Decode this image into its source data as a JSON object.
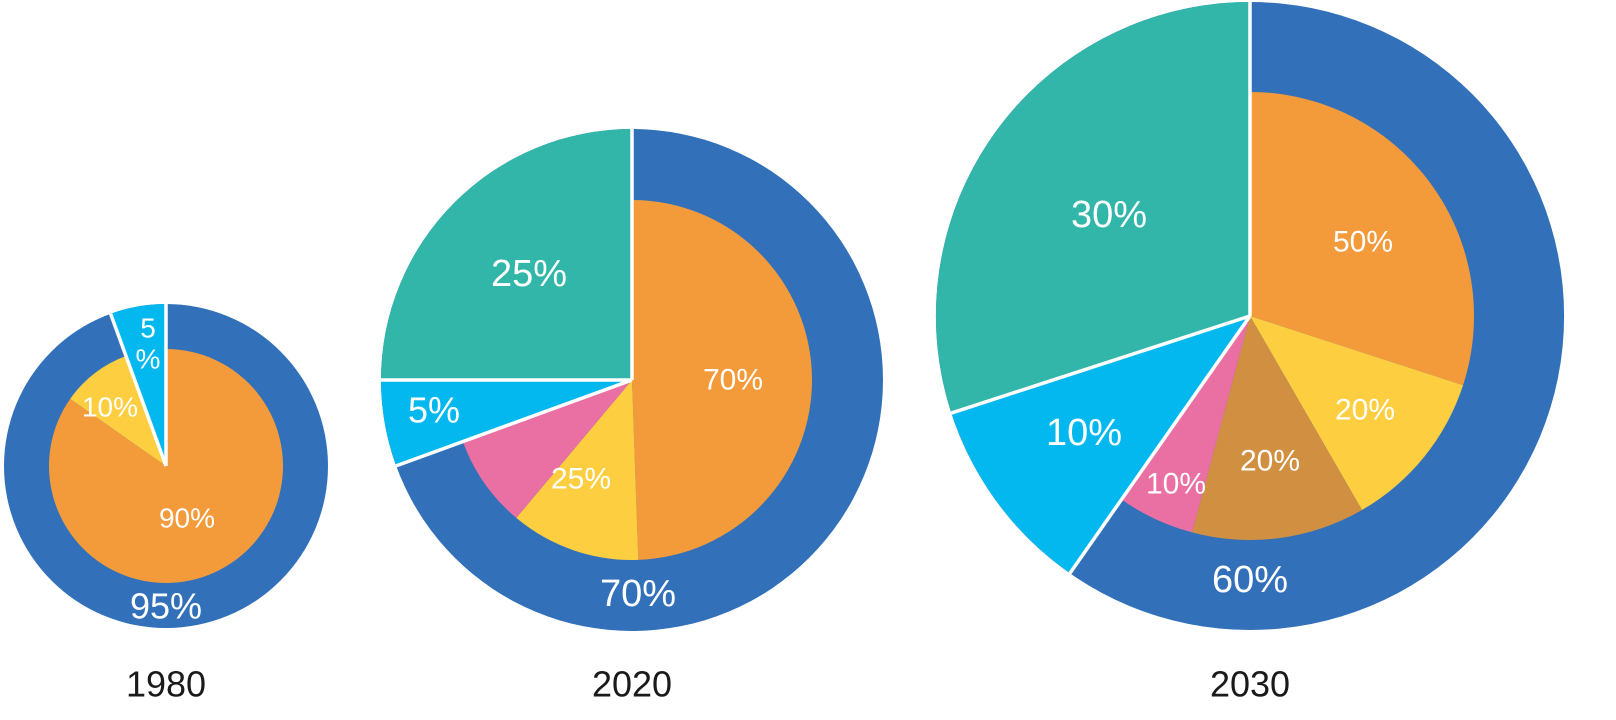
{
  "colors": {
    "outer_blue": "#3271BA",
    "orange": "#F39A3A",
    "yellow": "#FDCE40",
    "teal": "#31B6A9",
    "cyan": "#03B8EF",
    "pink": "#EA70A4",
    "brown": "#D18F41"
  },
  "chart_data": [
    {
      "type": "pie",
      "title": "1980",
      "outer_ring": [
        {
          "value": 95,
          "label": "95%",
          "color": "#3271BA"
        },
        {
          "value": 5,
          "label": "",
          "color": "#03B8EF"
        }
      ],
      "wedges": [
        {
          "value": 5,
          "label": "5\n%",
          "color": "#03B8EF",
          "radius": "outer"
        }
      ],
      "inner": [
        {
          "value": 90,
          "label": "90%",
          "color": "#F39A3A"
        },
        {
          "value": 10,
          "label": "10%",
          "color": "#FDCE40"
        }
      ]
    },
    {
      "type": "pie",
      "title": "2020",
      "outer_ring": [
        {
          "value": 70,
          "label": "70%",
          "color": "#3271BA"
        },
        {
          "value": 30,
          "label": "",
          "color": "#3271BA"
        }
      ],
      "wedges": [
        {
          "value": 5,
          "label": "5%",
          "color": "#03B8EF",
          "radius": "outer"
        },
        {
          "value": 25,
          "label": "25%",
          "color": "#31B6A9",
          "radius": "outer"
        }
      ],
      "inner": [
        {
          "value": 70,
          "label": "70%",
          "color": "#F39A3A"
        },
        {
          "value": 25,
          "label": "25%",
          "color": "#FDCE40"
        },
        {
          "value": 5,
          "label": "",
          "color": "#EA70A4"
        }
      ]
    },
    {
      "type": "pie",
      "title": "2030",
      "outer_ring": [
        {
          "value": 60,
          "label": "60%",
          "color": "#3271BA"
        }
      ],
      "wedges": [
        {
          "value": 10,
          "label": "10%",
          "color": "#03B8EF",
          "radius": "outer"
        },
        {
          "value": 30,
          "label": "30%",
          "color": "#31B6A9",
          "radius": "outer"
        }
      ],
      "inner": [
        {
          "value": 50,
          "label": "50%",
          "color": "#F39A3A"
        },
        {
          "value": 20,
          "label": "20%",
          "color": "#FDCE40"
        },
        {
          "value": 20,
          "label": "20%",
          "color": "#D18F41"
        },
        {
          "value": 10,
          "label": "10%",
          "color": "#EA70A4"
        }
      ]
    }
  ]
}
